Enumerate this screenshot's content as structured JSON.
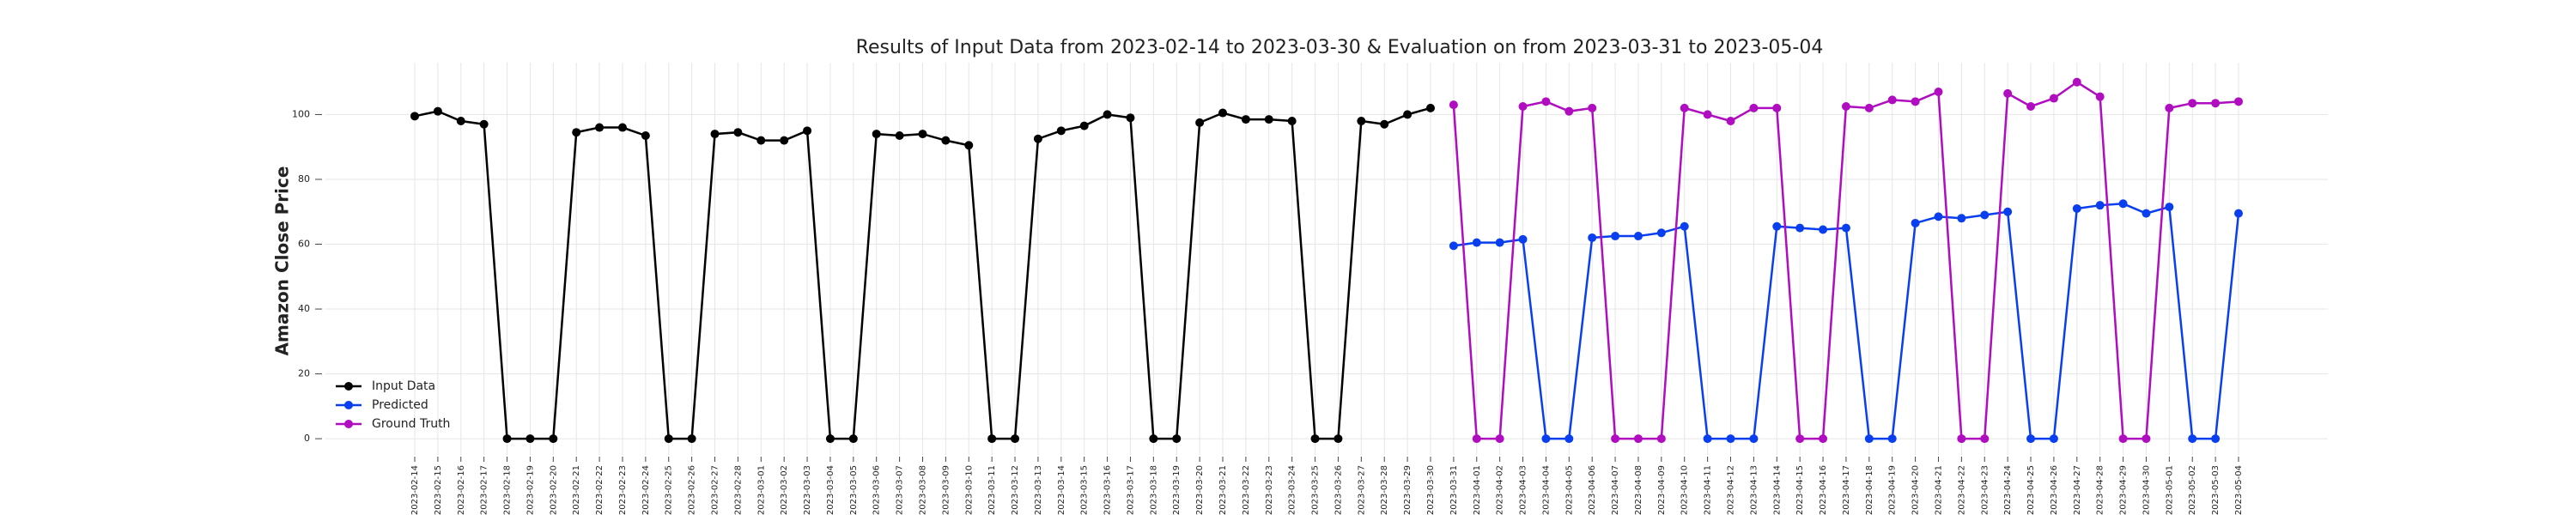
{
  "chart_data": {
    "type": "line",
    "title": "Results of Input Data from 2023-02-14 to 2023-03-30 & Evaluation on from 2023-03-31 to 2023-05-04",
    "y_label": "Amazon Close Price",
    "categories": [
      "2023-02-14",
      "2023-02-15",
      "2023-02-16",
      "2023-02-17",
      "2023-02-18",
      "2023-02-19",
      "2023-02-20",
      "2023-02-21",
      "2023-02-22",
      "2023-02-23",
      "2023-02-24",
      "2023-02-25",
      "2023-02-26",
      "2023-02-27",
      "2023-02-28",
      "2023-03-01",
      "2023-03-02",
      "2023-03-03",
      "2023-03-04",
      "2023-03-05",
      "2023-03-06",
      "2023-03-07",
      "2023-03-08",
      "2023-03-09",
      "2023-03-10",
      "2023-03-11",
      "2023-03-12",
      "2023-03-13",
      "2023-03-14",
      "2023-03-15",
      "2023-03-16",
      "2023-03-17",
      "2023-03-18",
      "2023-03-19",
      "2023-03-20",
      "2023-03-21",
      "2023-03-22",
      "2023-03-23",
      "2023-03-24",
      "2023-03-25",
      "2023-03-26",
      "2023-03-27",
      "2023-03-28",
      "2023-03-29",
      "2023-03-30",
      "2023-03-31",
      "2023-04-01",
      "2023-04-02",
      "2023-04-03",
      "2023-04-04",
      "2023-04-05",
      "2023-04-06",
      "2023-04-07",
      "2023-04-08",
      "2023-04-09",
      "2023-04-10",
      "2023-04-11",
      "2023-04-12",
      "2023-04-13",
      "2023-04-14",
      "2023-04-15",
      "2023-04-16",
      "2023-04-17",
      "2023-04-18",
      "2023-04-19",
      "2023-04-20",
      "2023-04-21",
      "2023-04-22",
      "2023-04-23",
      "2023-04-24",
      "2023-04-25",
      "2023-04-26",
      "2023-04-27",
      "2023-04-28",
      "2023-04-29",
      "2023-04-30",
      "2023-05-01",
      "2023-05-02",
      "2023-05-03",
      "2023-05-04"
    ],
    "series": [
      {
        "name": "Input Data",
        "color": "#000000",
        "values": [
          99.5,
          101,
          98,
          97,
          0,
          0,
          0,
          94.5,
          96,
          96,
          93.5,
          0,
          0,
          94,
          94.5,
          92,
          92,
          95,
          0,
          0,
          94,
          93.5,
          94,
          92,
          90.5,
          0,
          0,
          92.5,
          95,
          96.5,
          100,
          99,
          0,
          0,
          97.5,
          100.5,
          98.5,
          98.5,
          98,
          0,
          0,
          98,
          97,
          100,
          102,
          null,
          null,
          null,
          null,
          null,
          null,
          null,
          null,
          null,
          null,
          null,
          null,
          null,
          null,
          null,
          null,
          null,
          null,
          null,
          null,
          null,
          null,
          null,
          null,
          null,
          null,
          null,
          null,
          null,
          null,
          null,
          null,
          null,
          null,
          null
        ]
      },
      {
        "name": "Predicted",
        "color": "#0a3ff0",
        "values": [
          null,
          null,
          null,
          null,
          null,
          null,
          null,
          null,
          null,
          null,
          null,
          null,
          null,
          null,
          null,
          null,
          null,
          null,
          null,
          null,
          null,
          null,
          null,
          null,
          null,
          null,
          null,
          null,
          null,
          null,
          null,
          null,
          null,
          null,
          null,
          null,
          null,
          null,
          null,
          null,
          null,
          null,
          null,
          null,
          null,
          59.5,
          60.5,
          60.5,
          61.5,
          0,
          0,
          62,
          62.5,
          62.5,
          63.5,
          65.5,
          0,
          0,
          0,
          65.5,
          65,
          64.5,
          65,
          0,
          0,
          66.5,
          68.5,
          68,
          69,
          70,
          0,
          0,
          71,
          72,
          72.5,
          69.5,
          71.5,
          0,
          0,
          69.5
        ]
      },
      {
        "name": "Ground Truth",
        "color": "#b00cc0",
        "values": [
          null,
          null,
          null,
          null,
          null,
          null,
          null,
          null,
          null,
          null,
          null,
          null,
          null,
          null,
          null,
          null,
          null,
          null,
          null,
          null,
          null,
          null,
          null,
          null,
          null,
          null,
          null,
          null,
          null,
          null,
          null,
          null,
          null,
          null,
          null,
          null,
          null,
          null,
          null,
          null,
          null,
          null,
          null,
          null,
          null,
          103,
          0,
          0,
          102.5,
          104,
          101,
          102,
          0,
          0,
          0,
          102,
          100,
          98,
          102,
          102,
          0,
          0,
          102.5,
          102,
          104.5,
          104,
          107,
          0,
          0,
          106.5,
          102.5,
          105,
          110,
          105.5,
          0,
          0,
          102,
          103.5,
          103.5,
          104
        ]
      }
    ],
    "ylim": [
      -5,
      116
    ],
    "yticks": [
      0,
      20,
      40,
      60,
      80,
      100
    ],
    "grid": true,
    "legend": "lower left"
  }
}
